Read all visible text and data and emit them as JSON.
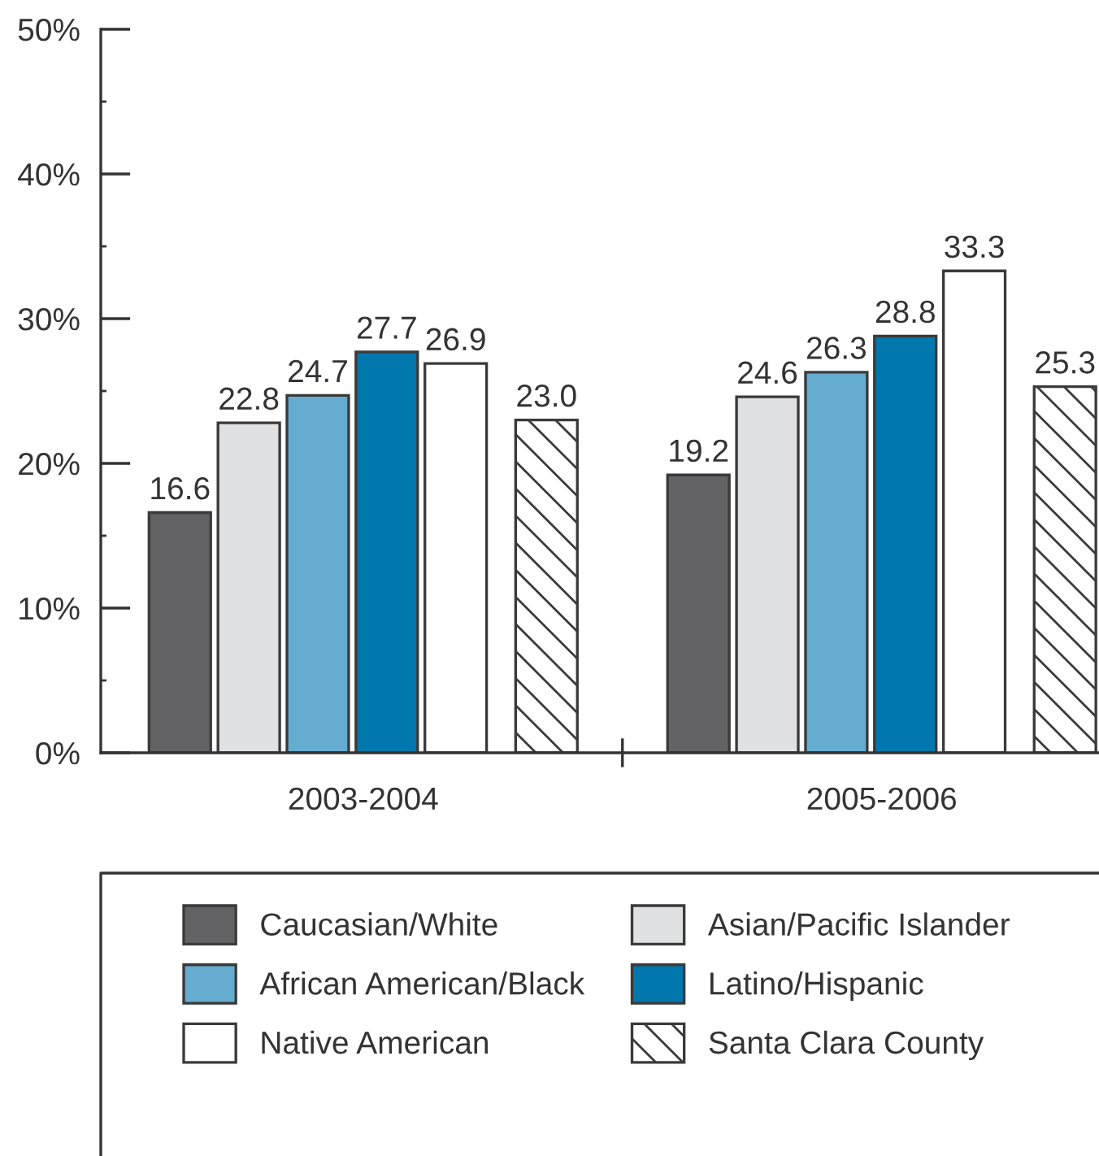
{
  "chart_data": {
    "type": "bar",
    "categories": [
      "2003-2004",
      "2005-2006"
    ],
    "series": [
      {
        "name": "Caucasian/White",
        "color": "#636366",
        "values": [
          16.6,
          19.2
        ],
        "value_labels": [
          "16.6",
          "19.2"
        ]
      },
      {
        "name": "Asian/Pacific Islander",
        "color": "#e0e1e3",
        "values": [
          22.8,
          24.6
        ],
        "value_labels": [
          "22.8",
          "24.6"
        ]
      },
      {
        "name": "African American/Black",
        "color": "#65acd1",
        "values": [
          24.7,
          26.3
        ],
        "value_labels": [
          "24.7",
          "26.3"
        ]
      },
      {
        "name": "Latino/Hispanic",
        "color": "#0077ad",
        "values": [
          27.7,
          28.8
        ],
        "value_labels": [
          "27.7",
          "28.8"
        ]
      },
      {
        "name": "Native American",
        "color": "#ffffff",
        "values": [
          26.9,
          33.3
        ],
        "value_labels": [
          "26.9",
          "33.3"
        ]
      },
      {
        "name": "Santa Clara County",
        "color": "#3a3a3a",
        "values": [
          23.0,
          25.3
        ],
        "value_labels": [
          "23.0",
          "25.3"
        ]
      }
    ],
    "ylim": [
      0,
      50
    ],
    "yticks": [
      {
        "value": 0,
        "label": "0%"
      },
      {
        "value": 10,
        "label": "10%"
      },
      {
        "value": 20,
        "label": "20%"
      },
      {
        "value": 30,
        "label": "30%"
      },
      {
        "value": 40,
        "label": "40%"
      },
      {
        "value": 50,
        "label": "50%"
      }
    ],
    "legend": "bottom"
  }
}
